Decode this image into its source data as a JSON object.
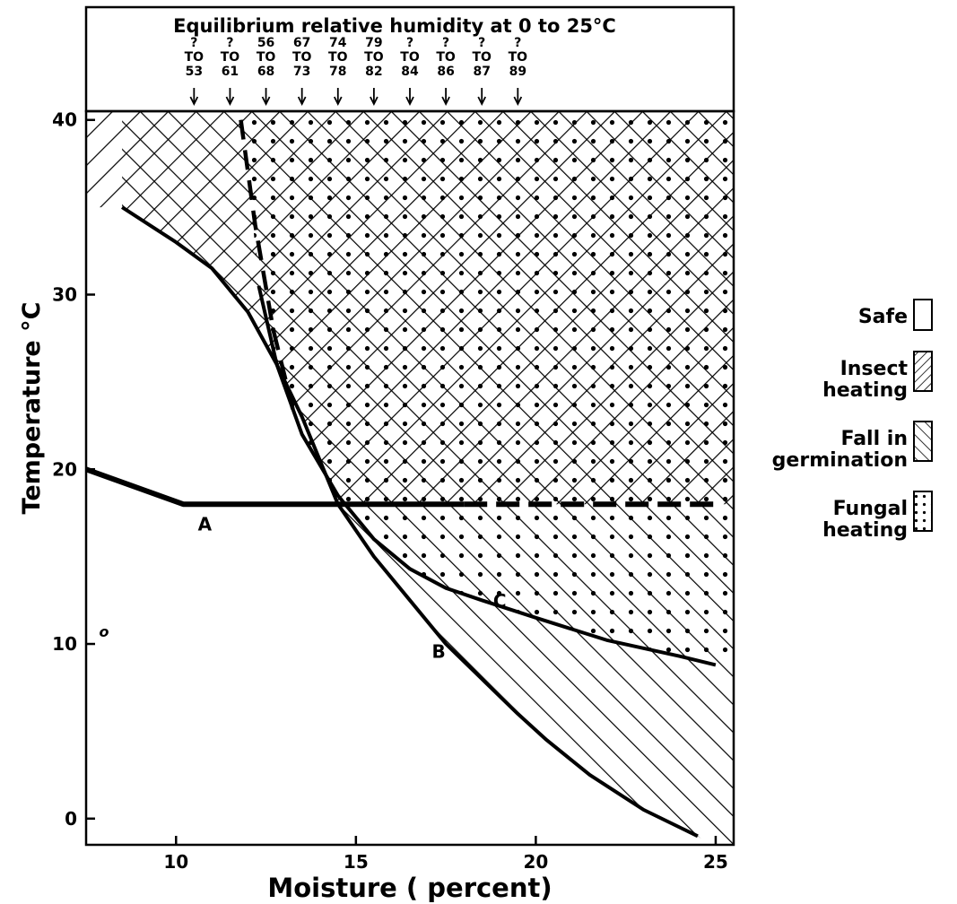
{
  "chart_data": {
    "type": "area",
    "title": "Equilibrium relative humidity at 0 to 25°C",
    "xlabel": "Moisture ( percent)",
    "ylabel": "Temperature °C",
    "xlim": [
      7.5,
      25.5
    ],
    "ylim": [
      -1.5,
      40.5
    ],
    "x_ticks": [
      10,
      15,
      20,
      25
    ],
    "x_tick_labels": [
      "10",
      "15",
      "20",
      "25"
    ],
    "y_ticks": [
      0,
      10,
      20,
      30,
      40
    ],
    "y_tick_labels": [
      "0",
      "10",
      "20",
      "30",
      "40"
    ],
    "humidity_scale": [
      {
        "moisture": 10.5,
        "top": "?",
        "bottom": "53"
      },
      {
        "moisture": 11.5,
        "top": "?",
        "bottom": "61"
      },
      {
        "moisture": 12.5,
        "top": "56",
        "bottom": "68"
      },
      {
        "moisture": 13.5,
        "top": "67",
        "bottom": "73"
      },
      {
        "moisture": 14.5,
        "top": "74",
        "bottom": "78"
      },
      {
        "moisture": 15.5,
        "top": "79",
        "bottom": "82"
      },
      {
        "moisture": 16.5,
        "top": "?",
        "bottom": "84"
      },
      {
        "moisture": 17.5,
        "top": "?",
        "bottom": "86"
      },
      {
        "moisture": 18.5,
        "top": "?",
        "bottom": "87"
      },
      {
        "moisture": 19.5,
        "top": "?",
        "bottom": "89"
      }
    ],
    "humidity_to_label": "TO",
    "curves": [
      {
        "name": "A",
        "style": "solid",
        "points": [
          [
            7.5,
            20
          ],
          [
            10.2,
            18
          ],
          [
            18,
            18
          ]
        ]
      },
      {
        "name": "A",
        "style": "dashed",
        "points": [
          [
            18,
            18
          ],
          [
            25,
            18
          ]
        ]
      },
      {
        "name": "B",
        "style": "solid",
        "points": [
          [
            8.5,
            35
          ],
          [
            10,
            33
          ],
          [
            11,
            31.5
          ],
          [
            12,
            29
          ],
          [
            12.8,
            26
          ],
          [
            13.5,
            23
          ],
          [
            14.5,
            18
          ],
          [
            15.5,
            15
          ],
          [
            16.5,
            12.5
          ],
          [
            17.5,
            10
          ],
          [
            18.5,
            8
          ],
          [
            19.5,
            6
          ],
          [
            20.3,
            4.5
          ],
          [
            21.5,
            2.5
          ],
          [
            23,
            0.5
          ],
          [
            24.5,
            -1
          ]
        ]
      },
      {
        "name": "C",
        "style": "solid",
        "points": [
          [
            12.3,
            30.5
          ],
          [
            12.8,
            26
          ],
          [
            13.5,
            22
          ],
          [
            14.5,
            18.5
          ],
          [
            15.5,
            16
          ],
          [
            16.5,
            14.3
          ],
          [
            17.5,
            13.2
          ],
          [
            18.5,
            12.5
          ],
          [
            20,
            11.5
          ],
          [
            22,
            10.2
          ],
          [
            24,
            9.3
          ],
          [
            25,
            8.8
          ]
        ]
      },
      {
        "name": "",
        "style": "dashed",
        "points": [
          [
            11.8,
            40
          ],
          [
            12.2,
            34
          ],
          [
            12.7,
            28
          ],
          [
            13.3,
            23
          ]
        ]
      }
    ],
    "regions": [
      {
        "name": "Insect heating",
        "pattern": "hatch-down"
      },
      {
        "name": "Fall in germination",
        "pattern": "hatch-up"
      },
      {
        "name": "Fungal heating",
        "pattern": "dots"
      }
    ],
    "annotations": [
      {
        "text": "A",
        "x": 10.8,
        "y": 16.5
      },
      {
        "text": "B",
        "x": 17.3,
        "y": 9.2
      },
      {
        "text": "C",
        "x": 19.0,
        "y": 12.1
      },
      {
        "text": "o",
        "x": 8.0,
        "y": 10.4
      }
    ],
    "legend": {
      "placement": "right",
      "entries": [
        {
          "line1": "Safe",
          "line2": "",
          "pattern": "none"
        },
        {
          "line1": "Insect",
          "line2": "heating",
          "pattern": "hatch-down"
        },
        {
          "line1": "Fall in",
          "line2": "germination",
          "pattern": "hatch-up"
        },
        {
          "line1": "Fungal",
          "line2": "heating",
          "pattern": "dots"
        }
      ]
    },
    "grid": false
  }
}
